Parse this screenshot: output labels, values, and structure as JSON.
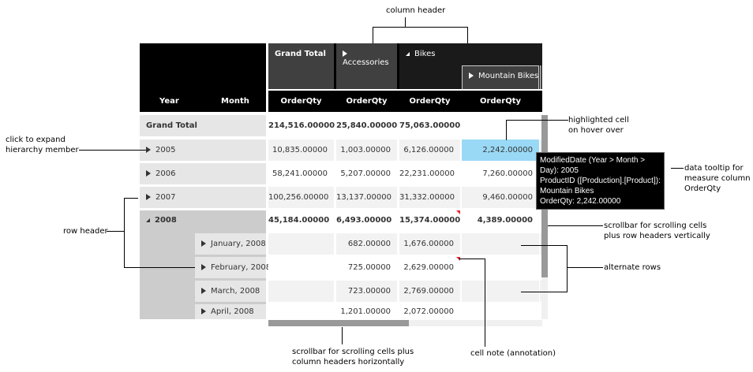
{
  "column_headers": {
    "grand_total": "Grand Total",
    "accessories": "Accessories",
    "bikes": "Bikes",
    "mountain_bikes": "Mountain Bikes"
  },
  "row_header_titles": {
    "year": "Year",
    "month": "Month"
  },
  "measure": "OrderQty",
  "rows": [
    {
      "label": "Grand Total",
      "values": [
        "214,516.00000",
        "25,840.00000",
        "75,063.00000",
        ""
      ]
    },
    {
      "label": "2005",
      "values": [
        "10,835.00000",
        "1,003.00000",
        "6,126.00000",
        "2,242.00000"
      ]
    },
    {
      "label": "2006",
      "values": [
        "58,241.00000",
        "5,207.00000",
        "22,231.00000",
        "7,260.00000"
      ]
    },
    {
      "label": "2007",
      "values": [
        "100,256.00000",
        "13,137.00000",
        "31,332.00000",
        "9,460.00000"
      ]
    },
    {
      "label": "2008",
      "values": [
        "45,184.00000",
        "6,493.00000",
        "15,374.00000",
        "4,389.00000"
      ]
    },
    {
      "label": "January, 2008",
      "values": [
        "",
        "682.00000",
        "1,676.00000",
        ""
      ]
    },
    {
      "label": "February, 2008",
      "values": [
        "",
        "725.00000",
        "2,629.00000",
        ""
      ]
    },
    {
      "label": "March, 2008",
      "values": [
        "",
        "723.00000",
        "2,769.00000",
        ""
      ]
    },
    {
      "label": "April, 2008",
      "values": [
        "",
        "1,201.00000",
        "2,072.00000",
        ""
      ]
    }
  ],
  "tooltip": {
    "line1": "ModifiedDate (Year > Month >",
    "line2": "Day): 2005",
    "line3": "ProductID ([Production].[Product]):",
    "line4": "Mountain Bikes",
    "line5": "OrderQty: 2,242.00000"
  },
  "annotations": {
    "column_header": "column header",
    "expand_1": "click to expand",
    "expand_2": "hierarchy member",
    "row_header": "row header",
    "highlight_1": "highlighted cell",
    "highlight_2": "on hover over",
    "tooltip_1": "data tooltip for",
    "tooltip_2": "measure column",
    "tooltip_3": "OrderQty",
    "vscroll_1": "scrollbar for scrolling cells",
    "vscroll_2": "plus row headers vertically",
    "alternate": "alternate rows",
    "hscroll_1": "scrollbar for scrolling cells plus",
    "hscroll_2": "column headers horizontally",
    "cell_note": "cell note (annotation)"
  },
  "colors": {
    "header_black": "#000000",
    "header_gray": "#404040",
    "highlight": "#99d9f5",
    "note": "#e22233"
  }
}
